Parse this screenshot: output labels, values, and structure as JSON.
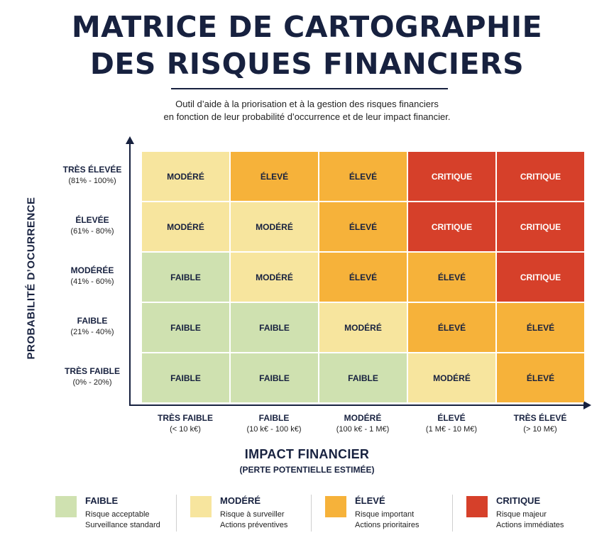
{
  "title": {
    "line1": "MATRICE DE CARTOGRAPHIE",
    "line2": "DES RISQUES FINANCIERS"
  },
  "subtitle": {
    "line1": "Outil d’aide à la priorisation et à la gestion des risques financiers",
    "line2": "en fonction de leur probabilité d’occurrence et de leur impact financier."
  },
  "y_axis_title": "PROBABILITÉ D’OCURRENCE",
  "x_axis_title": "IMPACT FINANCIER",
  "x_axis_subtitle": "(PERTE POTENTIELLE ESTIMÉE)",
  "rows": [
    {
      "name": "TRÈS ÉLEVÉE",
      "range": "(81% - 100%)"
    },
    {
      "name": "ÉLEVÉE",
      "range": "(61% - 80%)"
    },
    {
      "name": "MODÉRÉE",
      "range": "(41% - 60%)"
    },
    {
      "name": "FAIBLE",
      "range": "(21% - 40%)"
    },
    {
      "name": "TRÈS FAIBLE",
      "range": "(0% - 20%)"
    }
  ],
  "columns": [
    {
      "name": "TRÈS FAIBLE",
      "range": "(< 10 k€)"
    },
    {
      "name": "FAIBLE",
      "range": "(10 k€ - 100 k€)"
    },
    {
      "name": "MODÉRÉ",
      "range": "(100 k€ - 1 M€)"
    },
    {
      "name": "ÉLEVÉ",
      "range": "(1 M€ - 10 M€)"
    },
    {
      "name": "TRÈS ÉLEVÉ",
      "range": "(> 10 M€)"
    }
  ],
  "matrix": [
    [
      {
        "label": "MODÉRÉ",
        "level": "modere"
      },
      {
        "label": "ÉLEVÉ",
        "level": "eleve"
      },
      {
        "label": "ÉLEVÉ",
        "level": "eleve"
      },
      {
        "label": "CRITIQUE",
        "level": "critique"
      },
      {
        "label": "CRITIQUE",
        "level": "critique"
      }
    ],
    [
      {
        "label": "MODÉRÉ",
        "level": "modere"
      },
      {
        "label": "MODÉRÉ",
        "level": "modere"
      },
      {
        "label": "ÉLEVÉ",
        "level": "eleve"
      },
      {
        "label": "CRITIQUE",
        "level": "critique"
      },
      {
        "label": "CRITIQUE",
        "level": "critique"
      }
    ],
    [
      {
        "label": "FAIBLE",
        "level": "faible"
      },
      {
        "label": "MODÉRÉ",
        "level": "modere"
      },
      {
        "label": "ÉLEVÉ",
        "level": "eleve"
      },
      {
        "label": "ÉLEVÉ",
        "level": "eleve"
      },
      {
        "label": "CRITIQUE",
        "level": "critique"
      }
    ],
    [
      {
        "label": "FAIBLE",
        "level": "faible"
      },
      {
        "label": "FAIBLE",
        "level": "faible"
      },
      {
        "label": "MODÉRÉ",
        "level": "modere"
      },
      {
        "label": "ÉLEVÉ",
        "level": "eleve"
      },
      {
        "label": "ÉLEVÉ",
        "level": "eleve"
      }
    ],
    [
      {
        "label": "FAIBLE",
        "level": "faible"
      },
      {
        "label": "FAIBLE",
        "level": "faible"
      },
      {
        "label": "FAIBLE",
        "level": "faible"
      },
      {
        "label": "MODÉRÉ",
        "level": "modere"
      },
      {
        "label": "ÉLEVÉ",
        "level": "eleve"
      }
    ]
  ],
  "level_colors": {
    "faible": "#cfe1b0",
    "modere": "#f7e59e",
    "eleve": "#f6b23a",
    "critique": "#d6402a"
  },
  "legend": [
    {
      "title": "FAIBLE",
      "line1": "Risque acceptable",
      "line2": "Surveillance standard",
      "level": "faible"
    },
    {
      "title": "MODÉRÉ",
      "line1": "Risque à surveiller",
      "line2": "Actions préventives",
      "level": "modere"
    },
    {
      "title": "ÉLEVÉ",
      "line1": "Risque important",
      "line2": "Actions prioritaires",
      "level": "eleve"
    },
    {
      "title": "CRITIQUE",
      "line1": "Risque majeur",
      "line2": "Actions immédiates",
      "level": "critique"
    }
  ]
}
